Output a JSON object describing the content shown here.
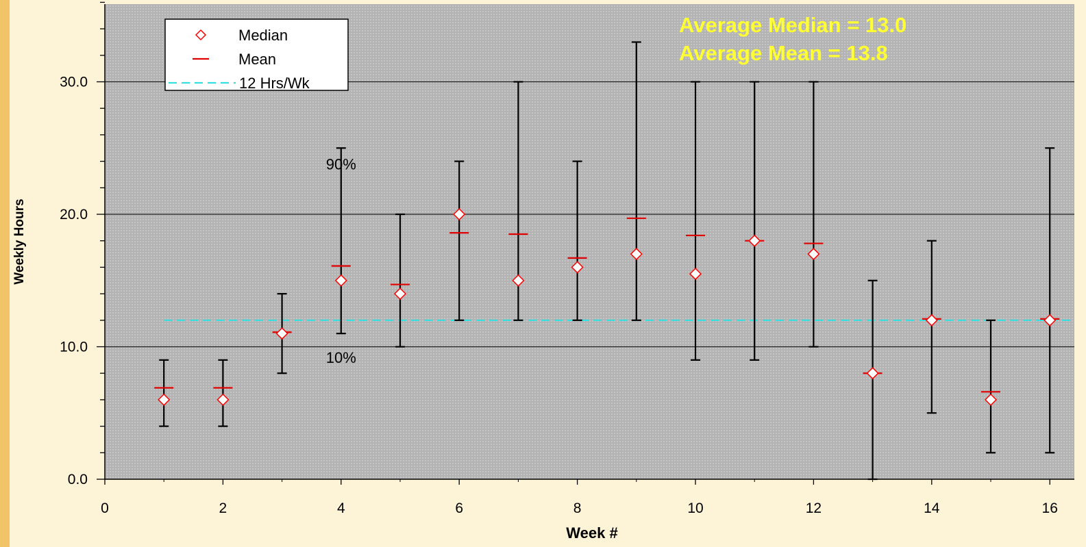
{
  "chart_data": {
    "type": "scatter",
    "xlabel": "Week #",
    "ylabel": "Weekly Hours",
    "xlim": [
      0,
      16.4
    ],
    "ylim": [
      0,
      36
    ],
    "x_ticks": [
      "0",
      "2",
      "4",
      "6",
      "8",
      "10",
      "12",
      "14",
      "16"
    ],
    "y_ticks": [
      "0.0",
      "10.0",
      "20.0",
      "30.0"
    ],
    "grid": "horizontal major lines",
    "legend_position": "top-left",
    "legend": [
      {
        "label": "Median",
        "marker": "diamond"
      },
      {
        "label": "Mean",
        "marker": "dash"
      },
      {
        "label": "12 Hrs/Wk",
        "marker": "dashed-line"
      }
    ],
    "annotations": [
      "Average Median = 13.0",
      "Average Mean = 13.8",
      "90%",
      "10%"
    ],
    "reference_line": {
      "name": "12 Hrs/Wk",
      "y": 12,
      "x_start": 1,
      "x_end": 16.4,
      "color": "#33e0e0"
    },
    "weeks": [
      1,
      2,
      3,
      4,
      5,
      6,
      7,
      8,
      9,
      10,
      11,
      12,
      13,
      14,
      15,
      16
    ],
    "median": [
      6,
      6,
      11,
      15,
      14,
      20,
      15,
      16,
      17,
      15.5,
      18,
      17,
      8,
      12,
      6,
      12
    ],
    "mean": [
      6.9,
      6.9,
      11.1,
      16.1,
      14.7,
      18.6,
      18.5,
      16.7,
      19.7,
      18.4,
      18.0,
      17.8,
      8.0,
      12.1,
      6.6,
      12.1
    ],
    "p10": [
      4,
      4,
      8,
      11,
      10,
      12,
      12,
      12,
      12,
      9,
      9,
      10,
      0,
      5,
      2,
      2
    ],
    "p90": [
      9,
      9,
      14,
      25,
      20,
      24,
      30,
      24,
      33,
      30,
      30,
      30,
      15,
      18,
      12,
      25
    ],
    "colors": {
      "plot_background": "#b3b3b3",
      "median_marker": "#ff0000",
      "mean_marker": "#e00000",
      "whisker": "#000000",
      "annotation": "#ffff33"
    }
  }
}
